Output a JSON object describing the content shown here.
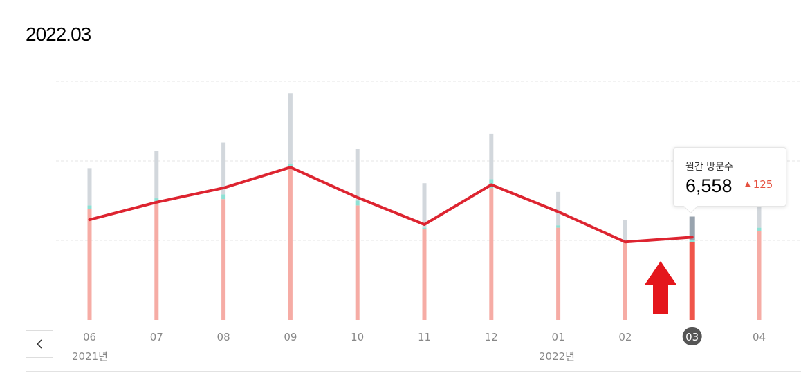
{
  "page": {
    "title": "2022.03"
  },
  "navigation": {
    "prev_icon": "chevron-left-icon"
  },
  "chart_data": {
    "type": "bar",
    "categories": [
      "06",
      "07",
      "08",
      "09",
      "10",
      "11",
      "12",
      "01",
      "02",
      "03",
      "04"
    ],
    "year_labels": [
      {
        "text": "2021년",
        "category": "06"
      },
      {
        "text": "2022년",
        "category": "01"
      }
    ],
    "selected_category": "03",
    "ylim": [
      0,
      15000
    ],
    "grid": true,
    "series": [
      {
        "kind": "bar-base",
        "values": [
          7000,
          7400,
          7600,
          9500,
          7200,
          5700,
          8300,
          5800,
          4900,
          4900,
          5600
        ]
      },
      {
        "kind": "bar-accent",
        "values": [
          200,
          250,
          300,
          300,
          300,
          100,
          550,
          150,
          100,
          100,
          200
        ]
      },
      {
        "kind": "bar-top",
        "values": [
          2350,
          3000,
          3250,
          4450,
          3250,
          2800,
          2850,
          2100,
          1300,
          1500,
          1300
        ]
      },
      {
        "kind": "line",
        "values": [
          6300,
          7400,
          8300,
          9600,
          7700,
          6000,
          8500,
          6800,
          4900,
          5200,
          null
        ]
      }
    ],
    "colors": {
      "bar_base": "#f6aca5",
      "bar_base_selected": "#f0554a",
      "bar_accent": "#8ee0d4",
      "bar_top": "#d2d7dc",
      "bar_top_selected": "#98a3ae",
      "line": "#dd2430",
      "arrow": "#e4161c",
      "grid": "#e4e4e4",
      "selected_badge": "#555555"
    }
  },
  "tooltip": {
    "label": "월간 방문수",
    "value": "6,558",
    "change": "125"
  }
}
